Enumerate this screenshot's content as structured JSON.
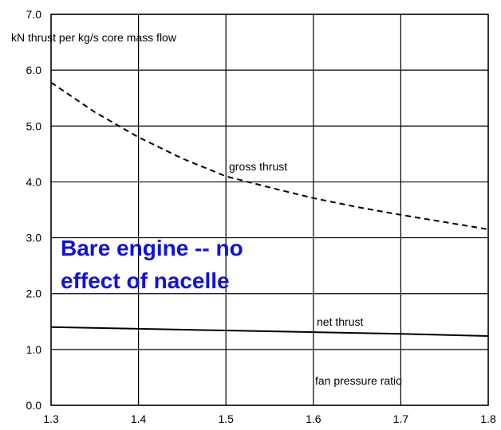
{
  "chart_data": {
    "type": "line",
    "title": "",
    "xlabel": "fan pressure ratio",
    "ylabel": "kN thrust per kg/s core mass flow",
    "xlim": [
      1.3,
      1.8
    ],
    "ylim": [
      0.0,
      7.0
    ],
    "x_ticks": [
      "1.3",
      "1.4",
      "1.5",
      "1.6",
      "1.7",
      "1.8"
    ],
    "y_ticks": [
      "0.0",
      "1.0",
      "2.0",
      "3.0",
      "4.0",
      "5.0",
      "6.0",
      "7.0"
    ],
    "grid": true,
    "series": [
      {
        "name": "gross thrust",
        "style": "dashed",
        "x": [
          1.3,
          1.35,
          1.4,
          1.45,
          1.5,
          1.55,
          1.6,
          1.65,
          1.7,
          1.75,
          1.8
        ],
        "y": [
          5.78,
          5.25,
          4.8,
          4.42,
          4.1,
          3.9,
          3.71,
          3.55,
          3.41,
          3.28,
          3.15
        ]
      },
      {
        "name": "net thrust",
        "style": "solid",
        "x": [
          1.3,
          1.4,
          1.5,
          1.6,
          1.7,
          1.8
        ],
        "y": [
          1.4,
          1.37,
          1.34,
          1.31,
          1.28,
          1.24
        ]
      }
    ],
    "annotations": {
      "bare_engine_line1": "Bare engine -- no",
      "bare_engine_line2": "effect of nacelle",
      "bare_engine_color": "#1010e0"
    }
  }
}
